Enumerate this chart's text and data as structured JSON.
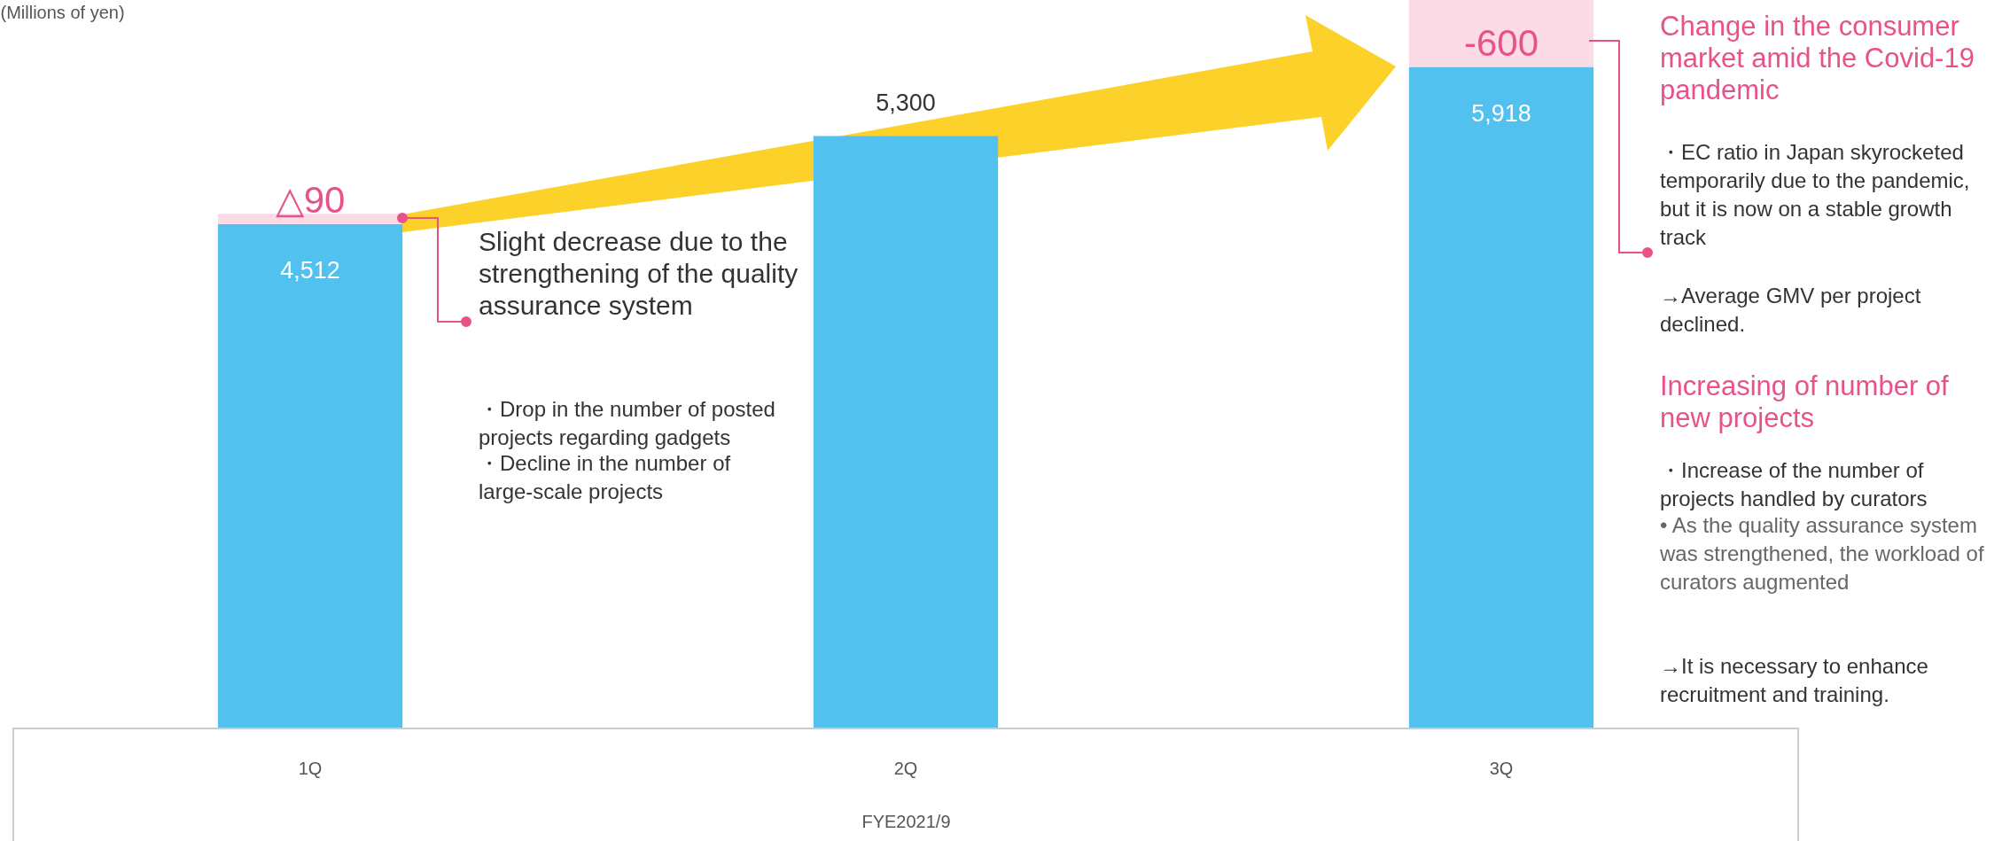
{
  "chart_data": {
    "type": "bar",
    "stacked": true,
    "ylabel": "(Millions of yen)",
    "xlabel": "FYE2021/9",
    "categories": [
      "1Q",
      "2Q",
      "3Q"
    ],
    "series": [
      {
        "color": "#52c1ef",
        "values": [
          4512,
          5300,
          5918
        ],
        "value_labels": [
          "4,512",
          "5,300",
          "5,918"
        ]
      },
      {
        "color": "#fbdbe5",
        "values": [
          90,
          null,
          600
        ]
      }
    ],
    "annotations": [
      {
        "text": "△90",
        "x": "1Q",
        "y": 4512
      },
      {
        "text": "-600",
        "x": "3Q",
        "y": 5918
      },
      "Slight decrease due to the strengthening of the quality assurance system",
      "・Drop in the number of posted projects regarding gadgets",
      "・Decline in the number of large-scale projects",
      "Change in the consumer market amid the Covid-19 pandemic",
      "・EC ratio in Japan skyrocketed temporarily due to the pandemic, but it is now on a stable growth track",
      "→Average GMV per project declined.",
      "Increasing of number of new projects",
      "・Increase of the number of projects handled by curators",
      "• As the quality assurance system was strengthened, the workload of curators augmented",
      "→It is necessary to enhance recruitment and training."
    ]
  }
}
